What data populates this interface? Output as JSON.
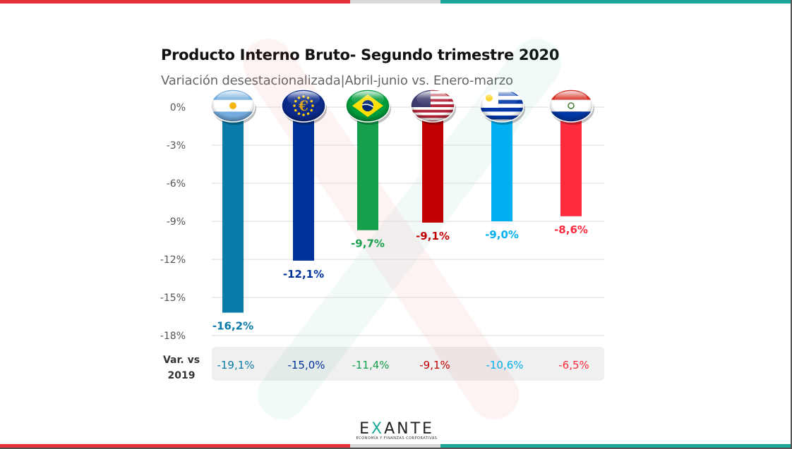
{
  "header": {
    "title": "Producto Interno Bruto- Segundo trimestre 2020",
    "subtitle": "Variación desestacionalizada|Abril-junio vs. Enero-marzo"
  },
  "chart_data": {
    "type": "bar",
    "title": "Producto Interno Bruto- Segundo trimestre 2020",
    "subtitle": "Variación desestacionalizada|Abril-junio vs. Enero-marzo",
    "categories": [
      "Argentina",
      "Zona Euro",
      "Brasil",
      "Estados Unidos",
      "Uruguay",
      "Paraguay"
    ],
    "flag_icons": [
      "argentina-flag-icon",
      "eu-flag-icon",
      "brazil-flag-icon",
      "usa-flag-icon",
      "uruguay-flag-icon",
      "paraguay-flag-icon"
    ],
    "values": [
      -16.2,
      -12.1,
      -9.7,
      -9.1,
      -9.0,
      -8.6
    ],
    "value_labels": [
      "-16,2%",
      "-12,1%",
      "-9,7%",
      "-9,1%",
      "-9,0%",
      "-8,6%"
    ],
    "colors": [
      "#0a7aa8",
      "#003399",
      "#16a04c",
      "#c00000",
      "#00b0f0",
      "#ff2a3d"
    ],
    "ylim": [
      -18,
      0
    ],
    "yticks": [
      0,
      -3,
      -6,
      -9,
      -12,
      -15,
      -18
    ],
    "ytick_labels": [
      "0%",
      "-3%",
      "-6%",
      "-9%",
      "-12%",
      "-15%",
      "-18%"
    ],
    "grid": true,
    "var_vs_2019": {
      "label": "Var. vs 2019",
      "values": [
        -19.1,
        -15.0,
        -11.4,
        -9.1,
        -10.6,
        -6.5
      ],
      "labels": [
        "-19,1%",
        "-15,0%",
        "-11,4%",
        "-9,1%",
        "-10,6%",
        "-6,5%"
      ]
    }
  },
  "brand": {
    "name_pre": "E",
    "name_x": "X",
    "name_post": "ANTE",
    "tagline": "ECONOMÍA Y FINANZAS CORPORATIVAS",
    "accent": "#1aa89a"
  }
}
